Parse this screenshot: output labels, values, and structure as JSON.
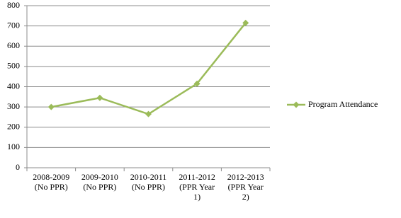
{
  "chart_data": {
    "type": "line",
    "categories": [
      "2008-2009 (No PPR)",
      "2009-2010 (No PPR)",
      "2010-2011 (No PPR)",
      "2011-2012 (PPR Year 1)",
      "2012-2013 (PPR Year 2)"
    ],
    "series": [
      {
        "name": "Program Attendance",
        "color": "#9bbb59",
        "values": [
          300,
          345,
          265,
          415,
          715
        ]
      }
    ],
    "ylim": [
      0,
      800
    ],
    "yticks": [
      0,
      100,
      200,
      300,
      400,
      500,
      600,
      700,
      800
    ],
    "grid": true,
    "legend": "right"
  }
}
